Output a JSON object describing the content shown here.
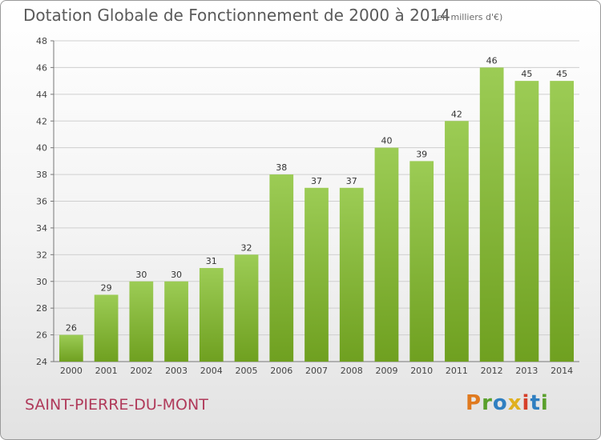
{
  "header": {
    "title": "Dotation Globale de Fonctionnement de 2000 à 2014",
    "unit_note": "(en milliers d'€)"
  },
  "footer": {
    "commune": "SAINT-PIERRE-DU-MONT",
    "logo": "Proxiti"
  },
  "colors": {
    "bar_light": "#9ccc55",
    "bar_dark": "#6fa020",
    "commune_text": "#b03a5a",
    "logo_letters": [
      "#e07a1f",
      "#5aa02c",
      "#2f7fc1",
      "#e0b01f",
      "#d6402a",
      "#2f7fc1",
      "#5aa02c"
    ]
  },
  "chart_data": {
    "type": "bar",
    "title": "Dotation Globale de Fonctionnement de 2000 à 2014",
    "subtitle": "(en milliers d'€)",
    "categories": [
      "2000",
      "2001",
      "2002",
      "2003",
      "2004",
      "2005",
      "2006",
      "2007",
      "2008",
      "2009",
      "2010",
      "2011",
      "2012",
      "2013",
      "2014"
    ],
    "values": [
      26,
      29,
      30,
      30,
      31,
      32,
      38,
      37,
      37,
      40,
      39,
      42,
      46,
      45,
      45
    ],
    "ylim": [
      24,
      48
    ],
    "yticks": [
      24,
      26,
      28,
      30,
      32,
      34,
      36,
      38,
      40,
      42,
      44,
      46,
      48
    ],
    "grid": true,
    "legend": "none"
  }
}
